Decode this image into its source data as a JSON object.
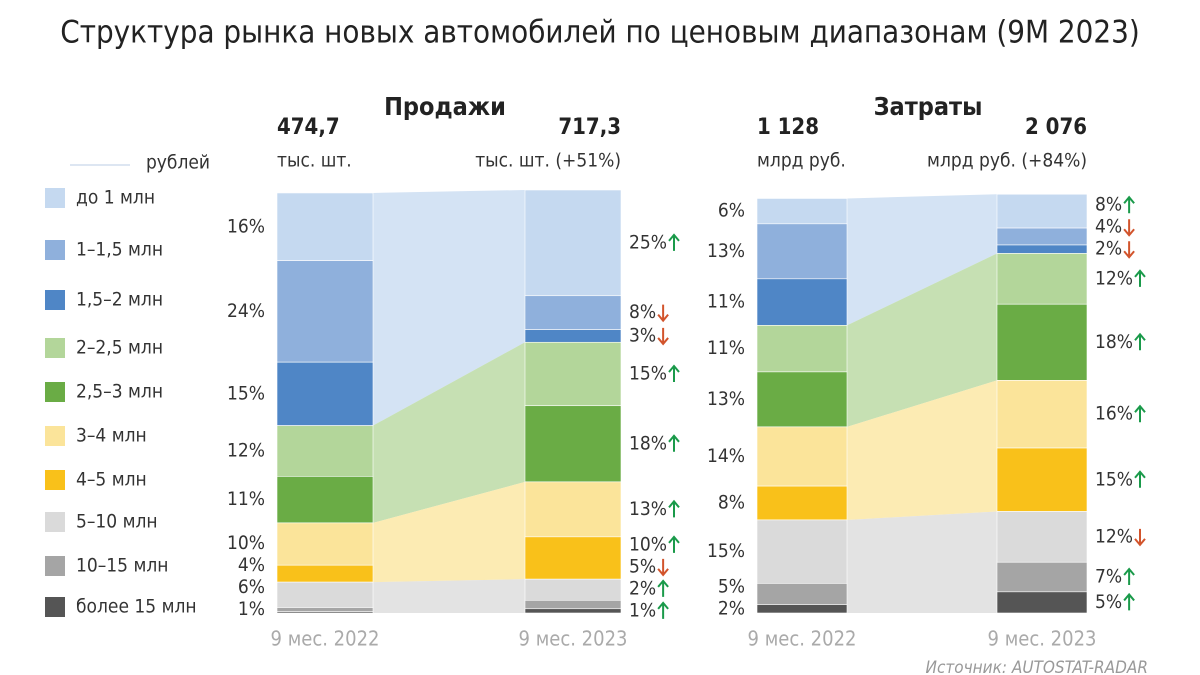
{
  "chart_data": {
    "type": "stacked-bar",
    "title": "Структура рынка новых автомобилей по ценовым диапазонам (9M 2023)",
    "legend_header": "рублей",
    "categories": [
      "до 1 млн",
      "1–1,5 млн",
      "1,5–2 млн",
      "2–2,5 млн",
      "2,5–3 млн",
      "3–4 млн",
      "4–5 млн",
      "5–10 млн",
      "10–15 млн",
      "более 15 млн"
    ],
    "colors": [
      "#c5d9f0",
      "#8fb0dc",
      "#4f86c6",
      "#b3d69a",
      "#6aac45",
      "#fbe49a",
      "#f9c11a",
      "#dadada",
      "#a5a5a5",
      "#555555"
    ],
    "groups": [
      [
        0,
        1,
        2
      ],
      [
        3,
        4
      ],
      [
        5,
        6
      ],
      [
        7,
        8,
        9
      ]
    ],
    "trend_colors": {
      "up": "#1a9a4a",
      "down": "#d2542c"
    },
    "ylim": [
      0,
      100
    ],
    "panels": [
      {
        "title": "Продажи",
        "totals": [
          {
            "value": 474.7,
            "label": "474,7"
          },
          {
            "value": 717.3,
            "label": "717,3"
          }
        ],
        "units": [
          "тыс. шт.",
          "тыс. шт. (+51%)"
        ],
        "series": [
          {
            "name": "9 мес. 2022",
            "values": [
              16,
              24,
              15,
              12,
              11,
              10,
              4,
              6,
              1,
              0.3
            ],
            "value_labels": [
              "16%",
              "24%",
              "15%",
              "12%",
              "11%",
              "10%",
              "4%",
              "6%",
              "1%",
              null
            ]
          },
          {
            "name": "9 мес. 2023",
            "values": [
              25,
              8,
              3,
              15,
              18,
              13,
              10,
              5,
              2,
              1
            ],
            "value_labels": [
              "25%",
              "8%",
              "3%",
              "15%",
              "18%",
              "13%",
              "10%",
              "5%",
              "2%",
              "1%"
            ],
            "trend": [
              "up",
              "down",
              "down",
              "up",
              "up",
              "up",
              "up",
              "down",
              "up",
              "up"
            ]
          }
        ]
      },
      {
        "title": "Затраты",
        "totals": [
          {
            "value": 1128,
            "label": "1 128"
          },
          {
            "value": 2076,
            "label": "2 076"
          }
        ],
        "units": [
          "млрд руб.",
          "млрд руб. (+84%)"
        ],
        "series": [
          {
            "name": "9 мес. 2022",
            "values": [
              6,
              13,
              11,
              11,
              13,
              14,
              8,
              15,
              5,
              2
            ],
            "value_labels": [
              "6%",
              "13%",
              "11%",
              "11%",
              "13%",
              "14%",
              "8%",
              "15%",
              "5%",
              "2%"
            ]
          },
          {
            "name": "9 мес. 2023",
            "values": [
              8,
              4,
              2,
              12,
              18,
              16,
              15,
              12,
              7,
              5
            ],
            "value_labels": [
              "8%",
              "4%",
              "2%",
              "12%",
              "18%",
              "16%",
              "15%",
              "12%",
              "7%",
              "5%"
            ],
            "trend": [
              "up",
              "down",
              "down",
              "up",
              "up",
              "up",
              "up",
              "down",
              "up",
              "up"
            ]
          }
        ]
      }
    ],
    "source": "Источник: AUTOSTAT-RADAR"
  }
}
